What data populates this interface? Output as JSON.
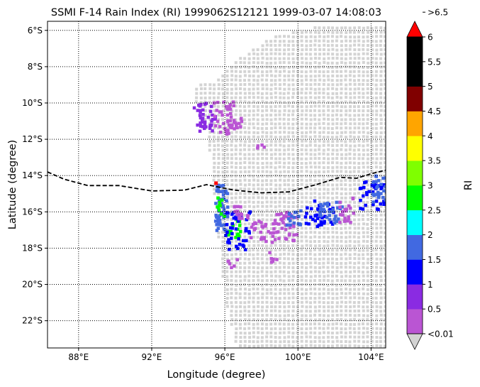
{
  "chart_data": {
    "type": "heatmap",
    "title": "SSMI F-14 Rain Index (RI) 1999062S12121 1999-03-07 14:08:03",
    "xlabel": "Longitude (degree)",
    "ylabel": "Latitude (degree)",
    "xlim": [
      86.3,
      104.8
    ],
    "ylim": [
      -23.5,
      -5.5
    ],
    "x_ticks": [
      {
        "value": 88,
        "label": "88°E"
      },
      {
        "value": 92,
        "label": "92°E"
      },
      {
        "value": 96,
        "label": "96°E"
      },
      {
        "value": 100,
        "label": "100°E"
      },
      {
        "value": 104,
        "label": "104°E"
      }
    ],
    "y_ticks": [
      {
        "value": -6,
        "label": "6°S"
      },
      {
        "value": -8,
        "label": "8°S"
      },
      {
        "value": -10,
        "label": "10°S"
      },
      {
        "value": -12,
        "label": "12°S"
      },
      {
        "value": -14,
        "label": "14°S"
      },
      {
        "value": -16,
        "label": "16°S"
      },
      {
        "value": -18,
        "label": "18°S"
      },
      {
        "value": -20,
        "label": "20°S"
      },
      {
        "value": -22,
        "label": "22°S"
      }
    ],
    "grid": true,
    "grid_style": "dotted",
    "swath_color": "#d3d3d3",
    "swath_outline": [
      [
        94.1,
        -9.0
      ],
      [
        95.2,
        -8.8
      ],
      [
        96.6,
        -7.5
      ],
      [
        98.5,
        -6.3
      ],
      [
        100.2,
        -5.9
      ],
      [
        101.5,
        -5.6
      ],
      [
        104.8,
        -5.6
      ],
      [
        104.8,
        -23.5
      ],
      [
        96.6,
        -23.5
      ],
      [
        96.1,
        -21.5
      ],
      [
        95.8,
        -19.5
      ],
      [
        95.6,
        -17.5
      ],
      [
        95.4,
        -15.5
      ],
      [
        95.2,
        -13.5
      ],
      [
        95.0,
        -12.0
      ],
      [
        94.7,
        -10.8
      ],
      [
        94.3,
        -9.8
      ]
    ],
    "track": {
      "style": "dashed",
      "color": "#000000",
      "points": [
        [
          86.3,
          -13.8
        ],
        [
          87.2,
          -14.2
        ],
        [
          88.5,
          -14.55
        ],
        [
          90.2,
          -14.55
        ],
        [
          92.0,
          -14.85
        ],
        [
          93.8,
          -14.8
        ],
        [
          95.0,
          -14.5
        ],
        [
          96.5,
          -14.8
        ],
        [
          98.0,
          -14.95
        ],
        [
          99.5,
          -14.9
        ],
        [
          101.0,
          -14.5
        ],
        [
          102.3,
          -14.1
        ],
        [
          103.2,
          -14.15
        ],
        [
          104.0,
          -13.9
        ],
        [
          104.8,
          -13.7
        ]
      ]
    },
    "rain_clusters": [
      {
        "lon": [
          94.2,
          95.4
        ],
        "lat": [
          -11.5,
          -9.9
        ],
        "level": 0.5,
        "cells": 40
      },
      {
        "lon": [
          95.3,
          96.5
        ],
        "lat": [
          -11.6,
          -9.8
        ],
        "level": 0.0,
        "cells": 30
      },
      {
        "lon": [
          96.0,
          96.9
        ],
        "lat": [
          -11.7,
          -10.6
        ],
        "level": 0.0,
        "cells": 20
      },
      {
        "lon": [
          97.6,
          98.1
        ],
        "lat": [
          -12.6,
          -12.2
        ],
        "level": 0.0,
        "cells": 4
      },
      {
        "lon": [
          95.4,
          96.1
        ],
        "lat": [
          -17.0,
          -14.3
        ],
        "level": 1.5,
        "cells": 60
      },
      {
        "lon": [
          95.5,
          95.9
        ],
        "lat": [
          -16.2,
          -15.1
        ],
        "level": 2.5,
        "cells": 10
      },
      {
        "lon": [
          96.1,
          96.8
        ],
        "lat": [
          -17.4,
          -16.4
        ],
        "level": 2.5,
        "cells": 15
      },
      {
        "lon": [
          95.8,
          97.3
        ],
        "lat": [
          -18.0,
          -15.9
        ],
        "level": 1.0,
        "cells": 40
      },
      {
        "lon": [
          96.4,
          97.3
        ],
        "lat": [
          -16.3,
          -15.6
        ],
        "level": 0.0,
        "cells": 15
      },
      {
        "lon": [
          97.2,
          98.6
        ],
        "lat": [
          -17.6,
          -16.4
        ],
        "level": 0.0,
        "cells": 25
      },
      {
        "lon": [
          98.6,
          99.9
        ],
        "lat": [
          -17.5,
          -15.9
        ],
        "level": 0.0,
        "cells": 40
      },
      {
        "lon": [
          99.2,
          100.1
        ],
        "lat": [
          -16.7,
          -15.8
        ],
        "level": 1.5,
        "cells": 18
      },
      {
        "lon": [
          98.3,
          98.9
        ],
        "lat": [
          -18.8,
          -18.1
        ],
        "level": 0.0,
        "cells": 6
      },
      {
        "lon": [
          100.3,
          101.9
        ],
        "lat": [
          -16.8,
          -15.3
        ],
        "level": 1.0,
        "cells": 35
      },
      {
        "lon": [
          101.1,
          102.4
        ],
        "lat": [
          -16.6,
          -15.3
        ],
        "level": 1.5,
        "cells": 30
      },
      {
        "lon": [
          102.2,
          103.0
        ],
        "lat": [
          -16.6,
          -15.1
        ],
        "level": 0.0,
        "cells": 20
      },
      {
        "lon": [
          103.3,
          104.8
        ],
        "lat": [
          -15.8,
          -14.2
        ],
        "level": 1.0,
        "cells": 35
      },
      {
        "lon": [
          104.0,
          104.8
        ],
        "lat": [
          -15.4,
          -13.9
        ],
        "level": 1.5,
        "cells": 25
      },
      {
        "lon": [
          96.0,
          96.7
        ],
        "lat": [
          -19.0,
          -18.4
        ],
        "level": 0.0,
        "cells": 6
      }
    ],
    "storm_marker": {
      "lon": 95.5,
      "lat": -14.4,
      "color": "#ff0000"
    },
    "colorbar": {
      "label": "RI",
      "under_label": "<0.01",
      "over_label": ">6.5",
      "under_color": "#d3d3d3",
      "over_color": "#ff0000",
      "bounds": [
        "0.5",
        "1",
        "1.5",
        "2",
        "2.5",
        "3",
        "3.5",
        "4",
        "4.5",
        "5",
        "5.5",
        "6"
      ],
      "colors": [
        "#ba55d3",
        "#8a2be2",
        "#0000ff",
        "#4169e1",
        "#00ffff",
        "#00ff00",
        "#7fff00",
        "#ffff00",
        "#ffa500",
        "#800000",
        "#000000",
        "#000000"
      ]
    }
  }
}
